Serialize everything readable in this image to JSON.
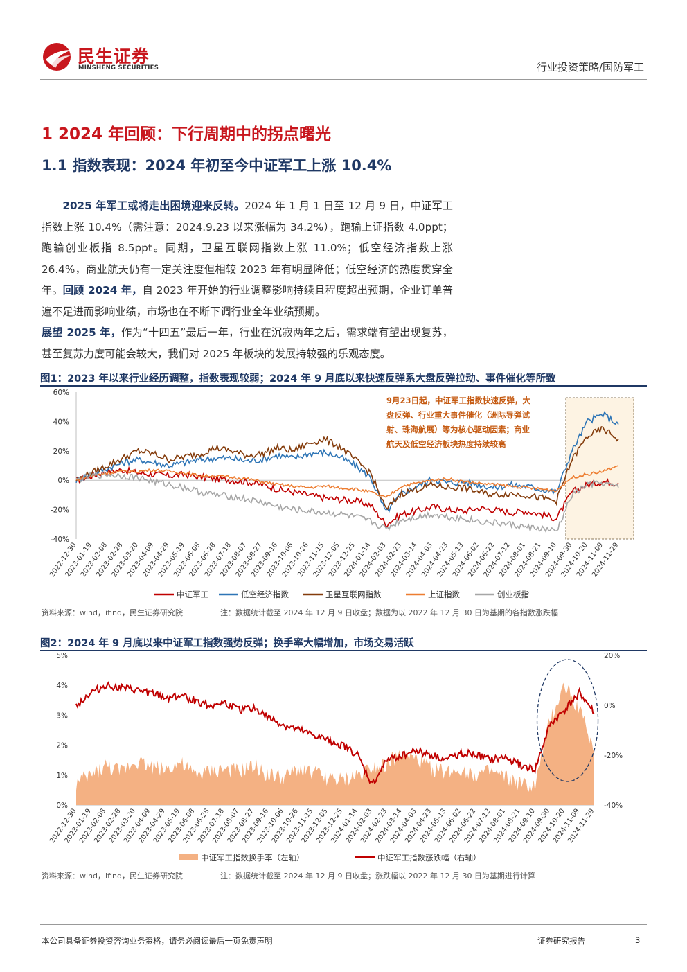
{
  "header": {
    "logo_cn": "民生证券",
    "logo_en": "MINSHENG SECURITIES",
    "category": "行业投资策略/国防军工"
  },
  "section": {
    "h1": "1 2024 年回顾：下行周期中的拐点曙光",
    "h2": "1.1 指数表现：2024 年初至今中证军工上涨 10.4%"
  },
  "body": {
    "p1_bold": "2025 年军工或将走出困境迎来反转。",
    "p1_text": "2024 年 1 月 1 日至 12 月 9 日，中证军工指数上涨 10.4%（需注意：2024.9.23 以来涨幅为 34.2%），跑输上证指数 4.0ppt；跑输创业板指 8.5ppt。同期，卫星互联网指数上涨 11.0%；低空经济指数上涨 26.4%，商业航天仍有一定关注度但相较 2023 年有明显降低；低空经济的热度贯穿全年。",
    "p1_bold2": "回顾 2024 年，",
    "p1_text2": "自 2023 年开始的行业调整影响持续且程度超出预期，企业订单普遍不足进而影响业绩，市场也在不断下调行业全年业绩预期。",
    "p2_bold": "展望 2025 年，",
    "p2_text": "作为“十四五”最后一年，行业在沉寂两年之后，需求端有望出现复苏，甚至复苏力度可能会较大，我们对 2025 年板块的发展持较强的乐观态度。"
  },
  "fig1": {
    "title": "图1：2023 年以来行业经历调整，指数表现较弱；2024 年 9 月底以来快速反弹系大盘反弹拉动、事件催化等所致",
    "source": "资料来源：wind，ifind，民生证券研究院",
    "note": "注：数据统计截至 2024 年 12 月 9 日收盘；数据为以 2022 年 12 月 30 日为基期的各指数涨跌幅",
    "annotation": [
      "9月23日起，中证军工指数快速反弹，大",
      "盘反弹、行业重大事件催化（洲际导弹试",
      "射、珠海航展）等为核心驱动因素；商业",
      "航天及低空经济板块热度持续较高"
    ],
    "annotation_color": "#c55a11"
  },
  "fig2": {
    "title": "图2：2024 年 9 月底以来中证军工指数强势反弹；换手率大幅增加，市场交易活跃",
    "source": "资料来源：wind，ifind，民生证券研究院",
    "note": "注：数据统计截至 2024 年 12 月 9 日收盘；涨跌幅以 2022 年 12 月 30 日为基期进行计算"
  },
  "footer": {
    "disclaimer": "本公司具备证券投资咨询业务资格，请务必阅读最后一页免责声明",
    "type": "证券研究报告",
    "page": "3"
  },
  "chart_data": [
    {
      "type": "line",
      "x_ticks": [
        "2022-12-30",
        "2023-01-19",
        "2023-02-08",
        "2023-02-28",
        "2023-03-20",
        "2023-04-09",
        "2023-04-29",
        "2023-05-19",
        "2023-06-08",
        "2023-06-28",
        "2023-07-18",
        "2023-08-07",
        "2023-08-27",
        "2023-09-16",
        "2023-10-06",
        "2023-10-26",
        "2023-11-15",
        "2023-12-05",
        "2023-12-25",
        "2024-01-14",
        "2024-02-03",
        "2024-02-23",
        "2024-03-14",
        "2024-04-03",
        "2024-04-23",
        "2024-05-13",
        "2024-06-02",
        "2024-06-22",
        "2024-07-12",
        "2024-08-01",
        "2024-08-21",
        "2024-09-10",
        "2024-09-30",
        "2024-10-20",
        "2024-11-09",
        "2024-11-29"
      ],
      "y_ticks": [
        "60%",
        "40%",
        "20%",
        "0%",
        "-20%",
        "-40%"
      ],
      "ylim": [
        -40,
        60
      ],
      "series": [
        {
          "name": "中证军工",
          "color": "#c00000",
          "values": [
            0,
            3,
            6,
            7,
            5,
            4,
            3,
            4,
            2,
            1,
            0,
            -1,
            -3,
            -6,
            -8,
            -10,
            -12,
            -13,
            -14,
            -17,
            -30,
            -23,
            -21,
            -18,
            -20,
            -21,
            -19,
            -20,
            -22,
            -21,
            -23,
            -26,
            -8,
            -3,
            -1,
            -2
          ]
        },
        {
          "name": "低空经济指数",
          "color": "#2e75b6",
          "values": [
            0,
            4,
            8,
            12,
            14,
            12,
            10,
            12,
            14,
            15,
            15,
            13,
            14,
            17,
            15,
            18,
            19,
            16,
            10,
            2,
            -22,
            -9,
            -4,
            1,
            -2,
            -1,
            -3,
            -5,
            -3,
            -4,
            -6,
            -8,
            20,
            40,
            45,
            38
          ]
        },
        {
          "name": "卫星互联网指数",
          "color": "#843c0c",
          "values": [
            0,
            5,
            10,
            15,
            20,
            18,
            14,
            16,
            18,
            22,
            20,
            17,
            18,
            22,
            20,
            25,
            28,
            23,
            14,
            5,
            -20,
            -9,
            -6,
            -3,
            -5,
            -5,
            -8,
            -10,
            -9,
            -10,
            -12,
            -14,
            14,
            30,
            35,
            28
          ]
        },
        {
          "name": "上证指数",
          "color": "#ed7d31",
          "values": [
            0,
            3,
            5,
            6,
            6,
            7,
            6,
            5,
            3,
            3,
            2,
            1,
            -1,
            -3,
            -4,
            -5,
            -4,
            -5,
            -6,
            -8,
            -12,
            -4,
            -2,
            0,
            1,
            -1,
            -2,
            -3,
            -4,
            -5,
            -6,
            -7,
            2,
            4,
            6,
            10
          ]
        },
        {
          "name": "创业板指",
          "color": "#a6a6a6",
          "values": [
            0,
            3,
            4,
            3,
            2,
            -1,
            -3,
            -5,
            -8,
            -10,
            -11,
            -13,
            -15,
            -18,
            -20,
            -21,
            -22,
            -23,
            -25,
            -28,
            -33,
            -27,
            -25,
            -23,
            -25,
            -26,
            -28,
            -29,
            -30,
            -32,
            -33,
            -35,
            -10,
            -3,
            -2,
            -5
          ]
        }
      ]
    },
    {
      "type": "area",
      "x_ticks": [
        "2022-12-30",
        "2023-01-19",
        "2023-02-08",
        "2023-02-28",
        "2023-03-20",
        "2023-04-09",
        "2023-04-29",
        "2023-05-19",
        "2023-06-08",
        "2023-06-28",
        "2023-07-18",
        "2023-08-07",
        "2023-08-27",
        "2023-09-16",
        "2023-10-06",
        "2023-10-26",
        "2023-11-15",
        "2023-12-05",
        "2023-12-25",
        "2024-01-14",
        "2024-02-03",
        "2024-02-23",
        "2024-03-14",
        "2024-04-03",
        "2024-04-23",
        "2024-05-13",
        "2024-06-02",
        "2024-06-22",
        "2024-07-12",
        "2024-08-01",
        "2024-08-21",
        "2024-09-10",
        "2024-09-30",
        "2024-10-20",
        "2024-11-09",
        "2024-11-29"
      ],
      "y_left_ticks": [
        "5%",
        "4%",
        "3%",
        "2%",
        "1%",
        "0%"
      ],
      "y_right_ticks": [
        "20%",
        "0%",
        "-20%",
        "-40%"
      ],
      "ylim_left": [
        0,
        5
      ],
      "ylim_right": [
        -40,
        20
      ],
      "series": [
        {
          "name": "中证军工指数换手率（左轴）",
          "color": "#f4b183",
          "axis": "left",
          "values": [
            0.7,
            1.0,
            1.3,
            1.1,
            1.5,
            1.3,
            1.2,
            1.4,
            1.0,
            1.1,
            1.2,
            1.1,
            1.3,
            1.0,
            0.9,
            1.2,
            1.1,
            0.9,
            0.8,
            1.0,
            1.3,
            1.4,
            1.7,
            1.5,
            1.2,
            1.1,
            1.2,
            1.0,
            1.1,
            0.9,
            0.7,
            0.6,
            2.8,
            4.0,
            3.2,
            1.8
          ]
        },
        {
          "name": "中证军工指数涨跌幅（右轴）",
          "color": "#c00000",
          "axis": "right",
          "values": [
            0,
            5,
            8,
            7,
            6,
            5,
            3,
            4,
            2,
            0,
            1,
            -2,
            -1,
            -5,
            -8,
            -10,
            -12,
            -14,
            -16,
            -20,
            -32,
            -22,
            -20,
            -18,
            -20,
            -22,
            -19,
            -20,
            -22,
            -21,
            -24,
            -26,
            -8,
            -2,
            5,
            -3
          ]
        }
      ]
    }
  ]
}
